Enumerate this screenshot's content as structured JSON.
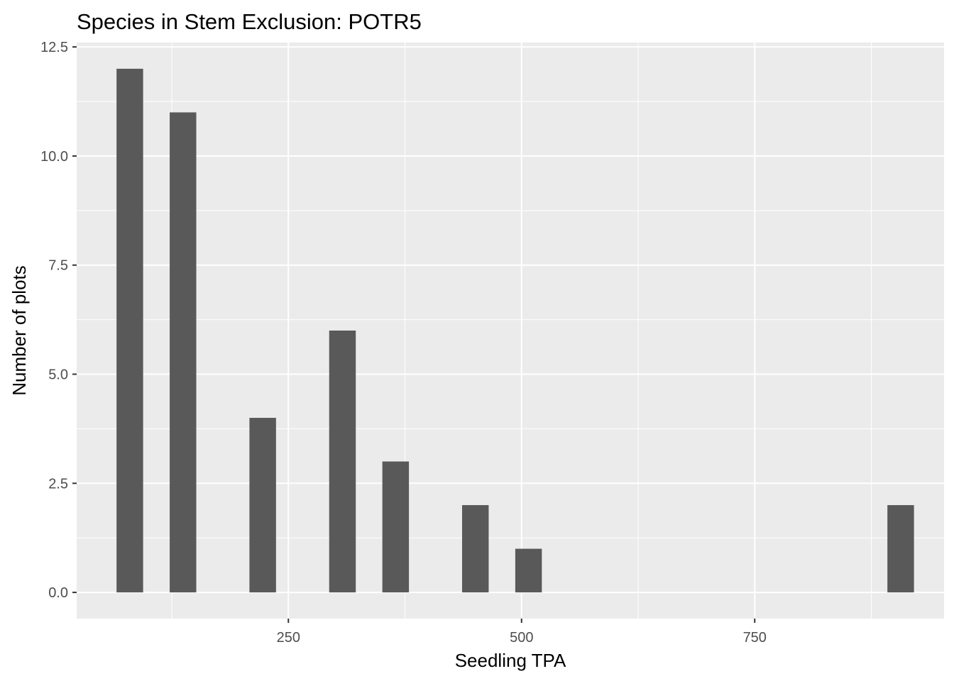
{
  "chart_data": {
    "type": "bar",
    "title": "Species in Stem Exclusion: POTR5",
    "xlabel": "Seedling TPA",
    "ylabel": "Number of plots",
    "xlim": [
      23,
      953
    ],
    "ylim": [
      -0.6,
      12.6
    ],
    "xticks": [
      250,
      500,
      750
    ],
    "xtick_labels": [
      "250",
      "500",
      "750"
    ],
    "yticks": [
      0,
      2.5,
      5,
      7.5,
      10,
      12.5
    ],
    "ytick_labels": [
      "0.0",
      "2.5",
      "5.0",
      "7.5",
      "10.0",
      "12.5"
    ],
    "bin_width": 28.5,
    "bars": [
      {
        "x": 80,
        "count": 12
      },
      {
        "x": 137,
        "count": 11
      },
      {
        "x": 222.5,
        "count": 4
      },
      {
        "x": 308,
        "count": 6
      },
      {
        "x": 365,
        "count": 3
      },
      {
        "x": 450.5,
        "count": 2
      },
      {
        "x": 507.5,
        "count": 1
      },
      {
        "x": 906.5,
        "count": 2
      }
    ],
    "grid": true,
    "panel_color": "#ebebeb",
    "bar_color": "#595959",
    "grid_color": "#ffffff"
  }
}
